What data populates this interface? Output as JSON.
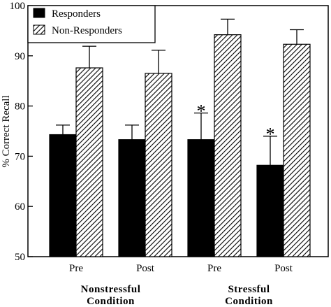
{
  "chart_data": {
    "type": "bar",
    "ylabel": "% Correct Recall",
    "ylim": [
      50,
      100
    ],
    "yticks": [
      50,
      60,
      70,
      80,
      90,
      100
    ],
    "categories": [
      "Pre",
      "Post",
      "Pre",
      "Post"
    ],
    "groups": [
      {
        "label_lines": [
          "Nonstressful",
          "Condition"
        ],
        "categories": [
          0,
          1
        ]
      },
      {
        "label_lines": [
          "Stressful",
          "Condition"
        ],
        "categories": [
          2,
          3
        ]
      }
    ],
    "series": [
      {
        "name": "Responders",
        "fill": "#000000",
        "values": [
          74.3,
          73.3,
          73.3,
          68.2
        ],
        "error_upper": [
          76.2,
          76.2,
          78.6,
          74.0
        ]
      },
      {
        "name": "Non-Responders",
        "fill": "hatched",
        "values": [
          87.6,
          86.5,
          94.2,
          92.3
        ],
        "error_upper": [
          91.9,
          91.1,
          97.3,
          95.2
        ]
      }
    ],
    "annotations": [
      {
        "text": "*",
        "category": 2,
        "series": 0
      },
      {
        "text": "*",
        "category": 3,
        "series": 0
      }
    ],
    "legend_position": "top-left"
  }
}
